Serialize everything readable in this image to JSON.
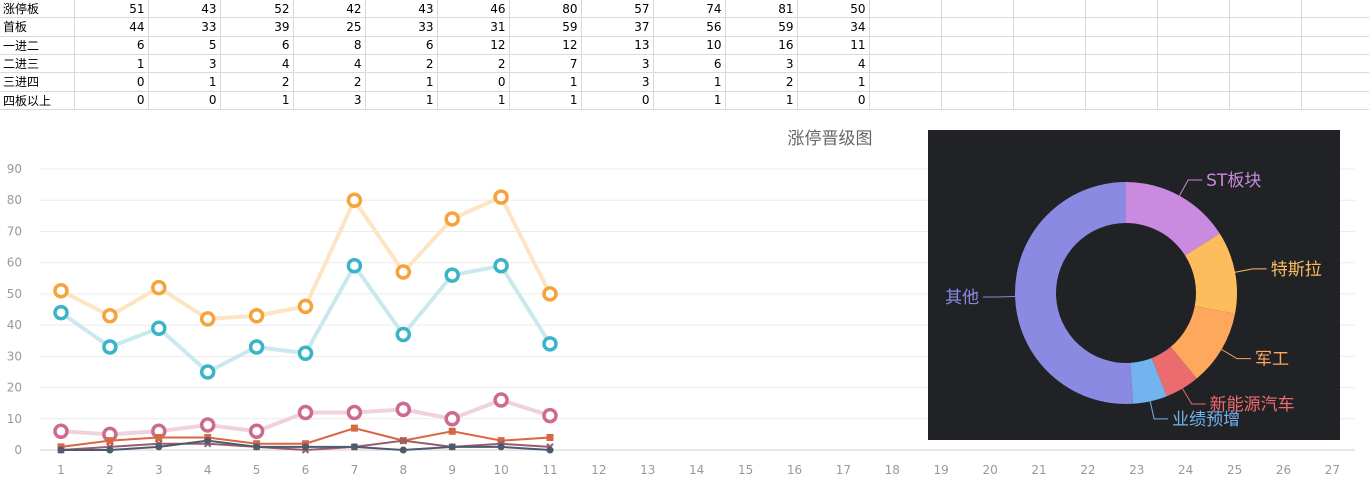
{
  "sheet": {
    "rows": [
      {
        "label": "涨停板",
        "values": [
          "51",
          "43",
          "52",
          "42",
          "43",
          "46",
          "80",
          "57",
          "74",
          "81",
          "50"
        ]
      },
      {
        "label": "首板",
        "values": [
          "44",
          "33",
          "39",
          "25",
          "33",
          "31",
          "59",
          "37",
          "56",
          "59",
          "34"
        ]
      },
      {
        "label": "一进二",
        "values": [
          "6",
          "5",
          "6",
          "8",
          "6",
          "12",
          "12",
          "13",
          "10",
          "16",
          "11"
        ]
      },
      {
        "label": "二进三",
        "values": [
          "1",
          "3",
          "4",
          "4",
          "2",
          "2",
          "7",
          "3",
          "6",
          "3",
          "4"
        ]
      },
      {
        "label": "三进四",
        "values": [
          "0",
          "1",
          "2",
          "2",
          "1",
          "0",
          "1",
          "3",
          "1",
          "2",
          "1"
        ]
      },
      {
        "label": "四板以上",
        "values": [
          "0",
          "0",
          "1",
          "3",
          "1",
          "1",
          "1",
          "0",
          "1",
          "1",
          "0"
        ]
      }
    ]
  },
  "chart_data": [
    {
      "type": "line",
      "title": "涨停晋级图",
      "x": [
        1,
        2,
        3,
        4,
        5,
        6,
        7,
        8,
        9,
        10,
        11
      ],
      "x_ticks": [
        1,
        2,
        3,
        4,
        5,
        6,
        7,
        8,
        9,
        10,
        11,
        12,
        13,
        14,
        15,
        16,
        17,
        18,
        19,
        20,
        21,
        22,
        23,
        24,
        25,
        26,
        27
      ],
      "ylim": [
        0,
        90
      ],
      "y_ticks": [
        0,
        10,
        20,
        30,
        40,
        50,
        60,
        70,
        80,
        90
      ],
      "grid": true,
      "series": [
        {
          "values": [
            51,
            43,
            52,
            42,
            43,
            46,
            80,
            57,
            74,
            81,
            50
          ],
          "color": "#f5a33b",
          "line_color": "#fde4c3",
          "marker": "ring"
        },
        {
          "values": [
            44,
            33,
            39,
            25,
            33,
            31,
            59,
            37,
            56,
            59,
            34
          ],
          "color": "#3ab4c7",
          "line_color": "#c9e9ee",
          "marker": "ring"
        },
        {
          "values": [
            6,
            5,
            6,
            8,
            6,
            12,
            12,
            13,
            10,
            16,
            11
          ],
          "color": "#cc6b91",
          "line_color": "#f0d2de",
          "marker": "ring"
        },
        {
          "values": [
            1,
            3,
            4,
            4,
            2,
            2,
            7,
            3,
            6,
            3,
            4
          ],
          "color": "#d9673f",
          "line_color": "#d9673f",
          "marker": "square"
        },
        {
          "values": [
            0,
            1,
            2,
            2,
            1,
            0,
            1,
            3,
            1,
            2,
            1
          ],
          "color": "#9a5c6c",
          "line_color": "#9a5c6c",
          "marker": "cross"
        },
        {
          "values": [
            0,
            0,
            1,
            3,
            1,
            1,
            1,
            0,
            1,
            1,
            0
          ],
          "color": "#4e5a6e",
          "line_color": "#4e5a6e",
          "marker": "dot"
        }
      ]
    },
    {
      "type": "pie",
      "background": "#212225",
      "slices": [
        {
          "label": "ST板块",
          "value": 16,
          "color": "#c98ae0"
        },
        {
          "label": "特斯拉",
          "value": 12,
          "color": "#fdbd5c"
        },
        {
          "label": "军工",
          "value": 11,
          "color": "#fda85d"
        },
        {
          "label": "新能源汽车",
          "value": 5,
          "color": "#ec6b6e"
        },
        {
          "label": "业绩预增",
          "value": 5,
          "color": "#73b4f0"
        },
        {
          "label": "其他",
          "value": 51,
          "color": "#8b8ae2"
        }
      ]
    }
  ]
}
